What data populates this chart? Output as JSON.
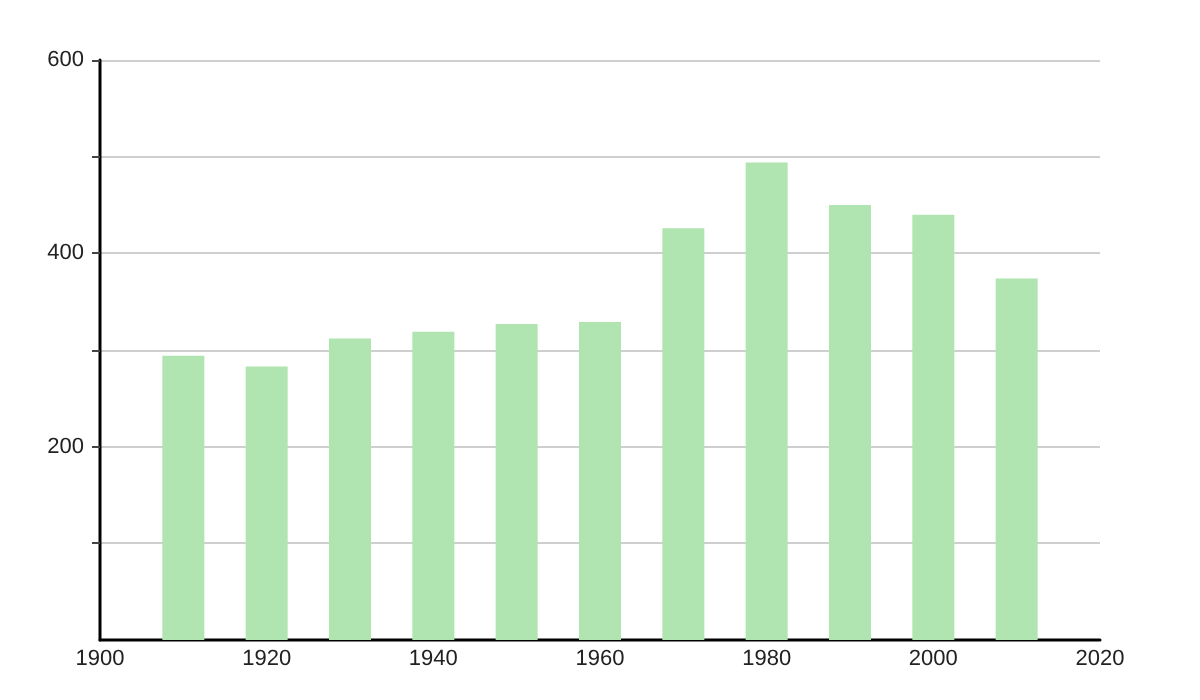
{
  "chart_data": {
    "type": "bar",
    "x": [
      1910,
      1920,
      1930,
      1940,
      1950,
      1960,
      1970,
      1980,
      1990,
      2000,
      2010
    ],
    "values": [
      294,
      283,
      312,
      319,
      327,
      329,
      426,
      494,
      450,
      440,
      374
    ],
    "color": "#b0e4b0",
    "xlim": [
      1900,
      2020
    ],
    "xticks": [
      1900,
      1920,
      1940,
      1960,
      1980,
      2000,
      2020
    ],
    "ylim": [
      0,
      600
    ],
    "yticks": [
      {
        "value": 100,
        "label": null
      },
      200,
      {
        "value": 300,
        "label": null
      },
      400,
      {
        "value": 500,
        "label": null
      },
      600
    ],
    "grid": "y"
  }
}
